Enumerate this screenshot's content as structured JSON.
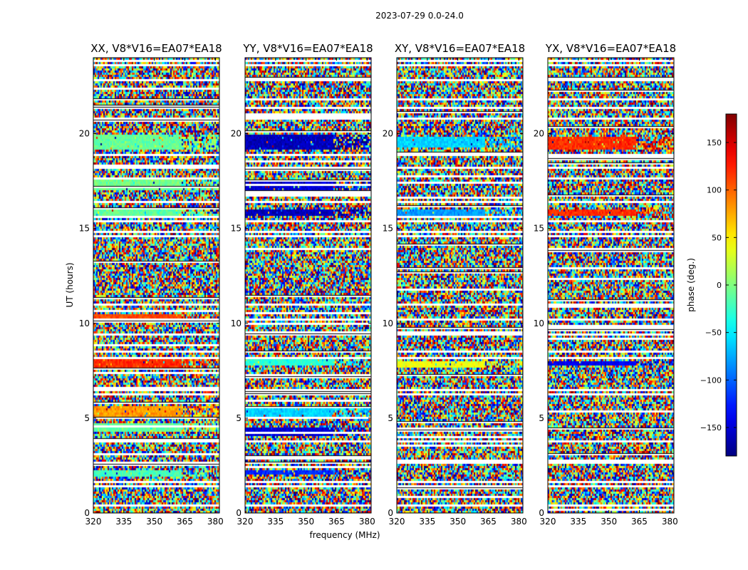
{
  "chart_data": {
    "type": "heatmap",
    "title": "2023-07-29 0.0-24.0",
    "xlabel": "frequency (MHz)",
    "ylabel": "UT (hours)",
    "xlim": [
      320,
      382
    ],
    "ylim": [
      0,
      24
    ],
    "xticks": [
      "320",
      "335",
      "350",
      "365",
      "380"
    ],
    "yticks": [
      "0",
      "5",
      "10",
      "15",
      "20"
    ],
    "panels": [
      {
        "title": "XX, V8*V16=EA07*EA18",
        "coherent_phase_deg": [
          {
            "ut": [
              1.9,
              2.2
            ],
            "phase": -20
          },
          {
            "ut": [
              4.3,
              4.7
            ],
            "phase": -10
          },
          {
            "ut": [
              5.0,
              5.6
            ],
            "phase": 80
          },
          {
            "ut": [
              7.7,
              8.1
            ],
            "phase": 120
          },
          {
            "ut": [
              10.0,
              10.5
            ],
            "phase": 110
          },
          {
            "ut": [
              15.7,
              16.0
            ],
            "phase": -10
          },
          {
            "ut": [
              17.0,
              17.6
            ],
            "phase": -5
          },
          {
            "ut": [
              19.1,
              19.9
            ],
            "phase": -10
          }
        ]
      },
      {
        "title": "YY, V8*V16=EA07*EA18",
        "coherent_phase_deg": [
          {
            "ut": [
              2.0,
              2.3
            ],
            "phase": -120
          },
          {
            "ut": [
              4.1,
              4.5
            ],
            "phase": -150
          },
          {
            "ut": [
              5.0,
              5.6
            ],
            "phase": -60
          },
          {
            "ut": [
              7.8,
              8.1
            ],
            "phase": -30
          },
          {
            "ut": [
              15.7,
              16.0
            ],
            "phase": -160
          },
          {
            "ut": [
              17.0,
              17.6
            ],
            "phase": -150
          },
          {
            "ut": [
              19.1,
              19.9
            ],
            "phase": -160
          }
        ]
      },
      {
        "title": "XY, V8*V16=EA07*EA18",
        "coherent_phase_deg": [
          {
            "ut": [
              7.7,
              8.0
            ],
            "phase": 40
          },
          {
            "ut": [
              15.7,
              16.0
            ],
            "phase": -80
          },
          {
            "ut": [
              19.3,
              19.8
            ],
            "phase": -60
          }
        ]
      },
      {
        "title": "YX, V8*V16=EA07*EA18",
        "coherent_phase_deg": [
          {
            "ut": [
              7.8,
              8.0
            ],
            "phase": -140
          },
          {
            "ut": [
              15.7,
              16.0
            ],
            "phase": 120
          },
          {
            "ut": [
              19.2,
              19.8
            ],
            "phase": 120
          }
        ]
      }
    ],
    "colorbar": {
      "label": "phase (deg.)",
      "range": [
        -180,
        180
      ],
      "ticks": [
        "150",
        "100",
        "50",
        "0",
        "−50",
        "−100",
        "−150"
      ],
      "tick_values": [
        150,
        100,
        50,
        0,
        -50,
        -100,
        -150
      ],
      "colormap": "jet"
    },
    "flagged_ut": [
      0.4,
      1.4,
      1.6,
      2.6,
      3.8,
      6.3,
      6.5,
      8.2,
      8.5,
      9.4,
      10.2,
      11.0,
      14.6,
      14.8,
      15.4,
      16.4,
      18.2,
      18.9,
      20.8,
      21.4,
      21.8,
      22.8,
      23.6,
      23.8
    ],
    "colors": {
      "nan_flag": "#ffffff",
      "frame": "#000000"
    }
  }
}
